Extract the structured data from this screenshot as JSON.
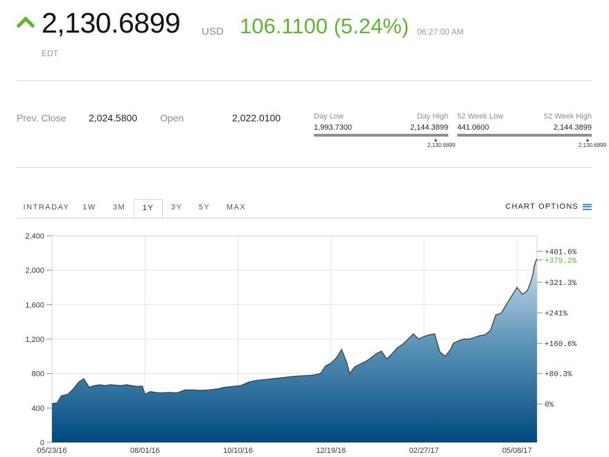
{
  "header": {
    "price": "2,130.6899",
    "currency": "USD",
    "change": "106.1100 (5.24%)",
    "time": "06:27:00 AM",
    "timezone": "EDT",
    "direction_icon": "up-arrow-icon",
    "up_color": "#5fb52e"
  },
  "stats": {
    "prev_close_label": "Prev. Close",
    "prev_close_value": "2,024.5800",
    "open_label": "Open",
    "open_value": "2,022.0100",
    "day_low_label": "Day Low",
    "day_low_value": "1,993.7300",
    "day_high_label": "Day High",
    "day_high_value": "2,144.3899",
    "day_current": "2,130.6899",
    "week52_low_label": "52 Week Low",
    "week52_low_value": "441.0600",
    "week52_high_label": "52 Week High",
    "week52_high_value": "2,144.3899",
    "week52_current": "2,130.6899"
  },
  "tabs": [
    {
      "label": "INTRADAY"
    },
    {
      "label": "1W"
    },
    {
      "label": "3M"
    },
    {
      "label": "1Y",
      "active": true
    },
    {
      "label": "3Y"
    },
    {
      "label": "5Y"
    },
    {
      "label": "MAX"
    }
  ],
  "chart_options_label": "CHART OPTIONS",
  "chart_data": {
    "type": "area",
    "ylim": [
      0,
      2400
    ],
    "yticks": [
      "2,400",
      "2,000",
      "1,600",
      "1,200",
      "800",
      "400",
      "0"
    ],
    "ytick_values": [
      2400,
      2000,
      1600,
      1200,
      800,
      400,
      0
    ],
    "xtick_labels": [
      "05/23/16",
      "08/01/16",
      "10/10/16",
      "12/19/16",
      "02/27/17",
      "05/08/17"
    ],
    "xtick_days": [
      0,
      70,
      140,
      210,
      280,
      350
    ],
    "x_range_days": [
      0,
      365
    ],
    "right_axis": [
      {
        "label": "+401.6%",
        "value": 2220
      },
      {
        "label": "+379.2%",
        "value": 2120,
        "highlight": true
      },
      {
        "label": "+321.3%",
        "value": 1860
      },
      {
        "label": "+241%",
        "value": 1505
      },
      {
        "label": "+160.6%",
        "value": 1150
      },
      {
        "label": "+80.3%",
        "value": 800
      },
      {
        "label": "0%",
        "value": 445
      }
    ],
    "highlight_color": "#5fb52e",
    "grid": true,
    "series": [
      {
        "days": [
          0,
          4,
          7,
          12,
          16,
          20,
          24,
          28,
          32,
          36,
          40,
          44,
          48,
          52,
          56,
          60,
          64,
          68,
          70,
          74,
          78,
          82,
          88,
          94,
          100,
          106,
          112,
          118,
          124,
          130,
          136,
          142,
          148,
          154,
          160,
          166,
          172,
          178,
          184,
          190,
          196,
          202,
          206,
          210,
          214,
          218,
          222,
          224,
          228,
          232,
          236,
          240,
          244,
          248,
          252,
          256,
          260,
          264,
          268,
          272,
          276,
          280,
          284,
          288,
          292,
          296,
          300,
          302,
          306,
          310,
          314,
          318,
          322,
          326,
          330,
          334,
          338,
          342,
          346,
          348,
          350,
          352,
          354,
          356,
          358,
          360,
          362,
          363,
          364,
          365
        ],
        "values": [
          450,
          460,
          540,
          560,
          620,
          700,
          740,
          640,
          660,
          670,
          660,
          670,
          665,
          660,
          670,
          660,
          650,
          655,
          560,
          590,
          580,
          575,
          580,
          575,
          610,
          610,
          605,
          610,
          620,
          640,
          650,
          660,
          700,
          720,
          730,
          740,
          750,
          760,
          770,
          775,
          780,
          800,
          890,
          920,
          980,
          1080,
          920,
          800,
          880,
          910,
          940,
          980,
          1030,
          1060,
          970,
          1030,
          1100,
          1140,
          1200,
          1260,
          1200,
          1230,
          1250,
          1260,
          1050,
          1000,
          1080,
          1150,
          1180,
          1200,
          1200,
          1220,
          1240,
          1250,
          1300,
          1480,
          1500,
          1600,
          1700,
          1750,
          1800,
          1760,
          1720,
          1740,
          1770,
          1850,
          1950,
          2050,
          2100,
          2130
        ]
      }
    ]
  }
}
